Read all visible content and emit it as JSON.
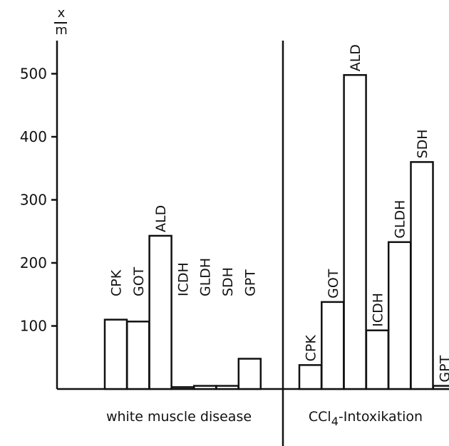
{
  "chart_data": {
    "type": "bar",
    "ylabel": "x/m",
    "ylabel_numerator": "x",
    "ylabel_denominator": "m",
    "ylim": [
      0,
      550
    ],
    "yticks": [
      100,
      200,
      300,
      400,
      500
    ],
    "grid": false,
    "groups": [
      {
        "name": "white muscle disease",
        "categories": [
          "CPK",
          "GOT",
          "ALD",
          "ICDH",
          "GLDH",
          "SDH",
          "GPT"
        ],
        "values": [
          110,
          107,
          243,
          3,
          5,
          5,
          48
        ]
      },
      {
        "name_main": "CCl",
        "name_sub": "4",
        "name_rest": "-Intoxikation",
        "categories": [
          "CPK",
          "GOT",
          "ALD",
          "ICDH",
          "GLDH",
          "SDH",
          "GPT"
        ],
        "values": [
          38,
          138,
          498,
          93,
          233,
          360,
          5
        ]
      }
    ]
  }
}
